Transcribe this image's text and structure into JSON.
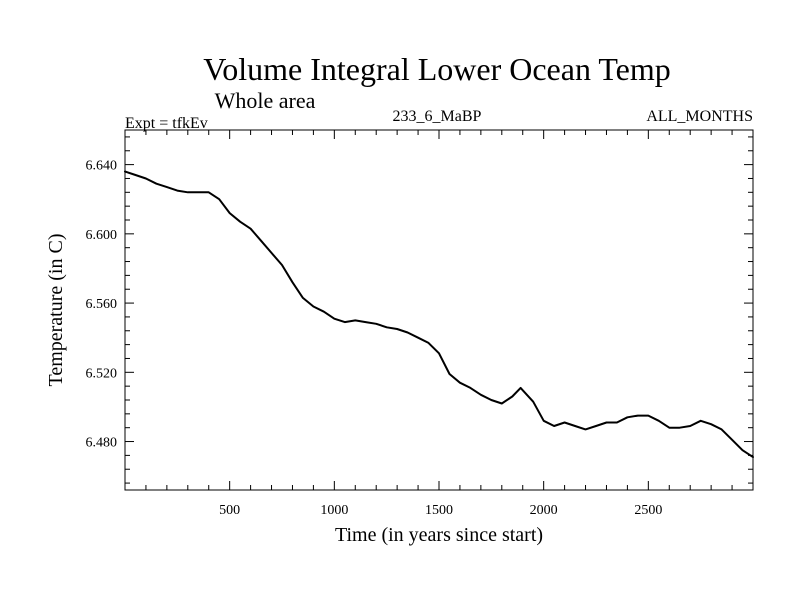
{
  "chart_data": {
    "type": "line",
    "title": "Volume Integral Lower Ocean Temp",
    "subtitle": "Whole area",
    "experiment": "Expt = tfkEv",
    "run": "233_6_MaBP",
    "months": "ALL_MONTHS",
    "xlabel": "Time (in years since start)",
    "ylabel": "Temperature (in C)",
    "xlim": [
      0,
      3000
    ],
    "ylim": [
      6.452,
      6.66
    ],
    "xticks": [
      500,
      1000,
      1500,
      2000,
      2500
    ],
    "xtick_labels": [
      "500",
      "1000",
      "1500",
      "2000",
      "2500"
    ],
    "yticks": [
      6.48,
      6.52,
      6.56,
      6.6,
      6.64
    ],
    "ytick_labels": [
      "6.480",
      "6.520",
      "6.560",
      "6.600",
      "6.640"
    ],
    "grid": false,
    "series": [
      {
        "color": "#000000",
        "x": [
          0,
          50,
          100,
          150,
          200,
          250,
          300,
          350,
          400,
          450,
          500,
          550,
          600,
          650,
          700,
          750,
          800,
          850,
          900,
          950,
          1000,
          1050,
          1100,
          1150,
          1200,
          1250,
          1300,
          1350,
          1400,
          1450,
          1500,
          1550,
          1600,
          1650,
          1700,
          1750,
          1800,
          1850,
          1890,
          1950,
          2000,
          2050,
          2100,
          2150,
          2200,
          2250,
          2300,
          2350,
          2400,
          2450,
          2500,
          2550,
          2600,
          2650,
          2700,
          2750,
          2800,
          2850,
          2900,
          2950,
          3000
        ],
        "y": [
          6.636,
          6.634,
          6.632,
          6.629,
          6.627,
          6.625,
          6.624,
          6.624,
          6.624,
          6.62,
          6.612,
          6.607,
          6.603,
          6.596,
          6.589,
          6.582,
          6.572,
          6.563,
          6.558,
          6.555,
          6.551,
          6.549,
          6.55,
          6.549,
          6.548,
          6.546,
          6.545,
          6.543,
          6.54,
          6.537,
          6.531,
          6.519,
          6.514,
          6.511,
          6.507,
          6.504,
          6.502,
          6.506,
          6.511,
          6.503,
          6.492,
          6.489,
          6.491,
          6.489,
          6.487,
          6.489,
          6.491,
          6.491,
          6.494,
          6.495,
          6.495,
          6.492,
          6.488,
          6.488,
          6.489,
          6.492,
          6.49,
          6.487,
          6.481,
          6.475,
          6.471
        ]
      }
    ]
  }
}
